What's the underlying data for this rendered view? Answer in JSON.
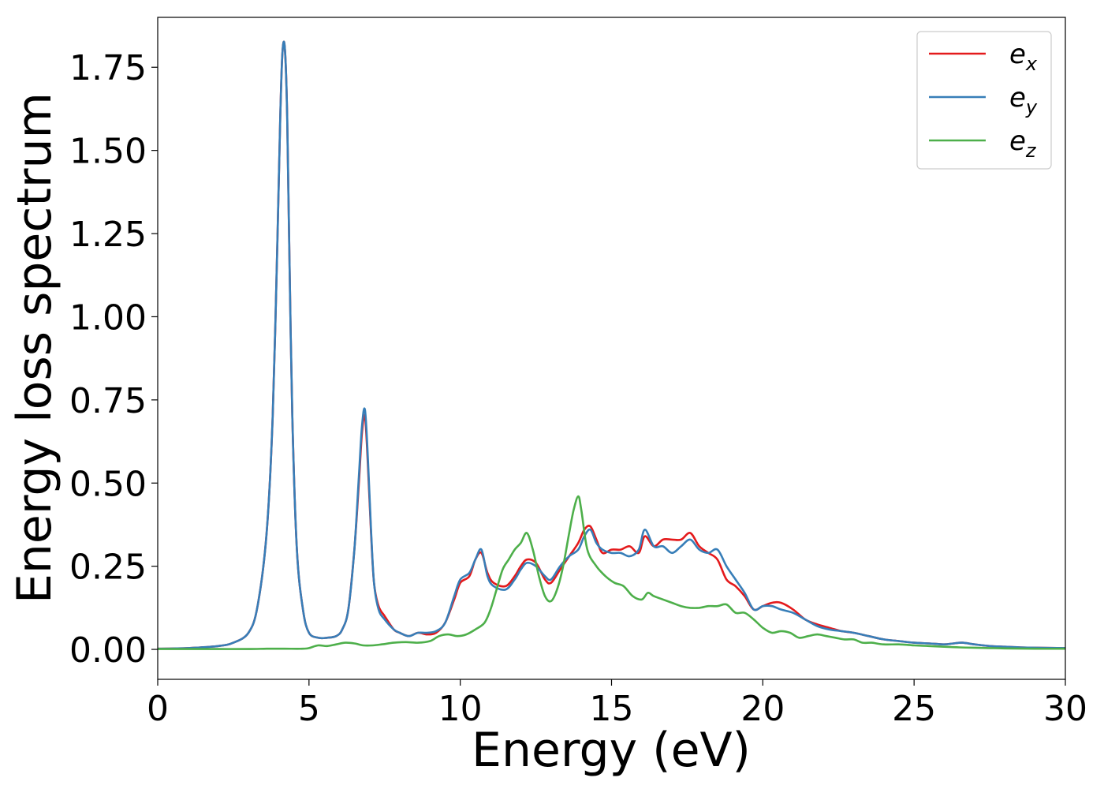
{
  "chart_data": {
    "type": "line",
    "title": "",
    "xlabel": "Energy (eV)",
    "ylabel": "Energy loss spectrum",
    "xlim": [
      0,
      30
    ],
    "ylim": [
      -0.09,
      1.9
    ],
    "xticks": [
      0,
      5,
      10,
      15,
      20,
      25,
      30
    ],
    "xtick_labels": [
      "0",
      "5",
      "10",
      "15",
      "20",
      "25",
      "30"
    ],
    "yticks": [
      0,
      0.25,
      0.5,
      0.75,
      1.0,
      1.25,
      1.5,
      1.75
    ],
    "ytick_labels": [
      "0.00",
      "0.25",
      "0.50",
      "0.75",
      "1.00",
      "1.25",
      "1.50",
      "1.75"
    ],
    "grid": false,
    "legend_position": "top-right",
    "series": [
      {
        "name": "e_x",
        "label_base": "e",
        "label_sub": "x",
        "color": "#e41a1c",
        "x": [
          0,
          1,
          2,
          2.5,
          3,
          3.3,
          3.6,
          3.8,
          3.95,
          4.05,
          4.12,
          4.2,
          4.28,
          4.35,
          4.45,
          4.6,
          4.8,
          5.0,
          5.3,
          5.6,
          5.9,
          6.1,
          6.3,
          6.5,
          6.65,
          6.75,
          6.85,
          6.95,
          7.05,
          7.15,
          7.3,
          7.5,
          7.8,
          8.0,
          8.3,
          8.6,
          8.9,
          9.2,
          9.5,
          9.8,
          10.0,
          10.3,
          10.5,
          10.7,
          10.9,
          11.1,
          11.5,
          11.8,
          12.0,
          12.2,
          12.5,
          12.8,
          13.0,
          13.3,
          13.6,
          13.9,
          14.1,
          14.3,
          14.5,
          14.7,
          15.0,
          15.3,
          15.6,
          15.9,
          16.1,
          16.4,
          16.7,
          17.0,
          17.3,
          17.6,
          17.9,
          18.2,
          18.5,
          18.8,
          19.1,
          19.4,
          19.7,
          20.0,
          20.3,
          20.6,
          21.0,
          21.4,
          21.8,
          22.2,
          22.6,
          23.0,
          23.5,
          24.0,
          24.5,
          25.0,
          25.5,
          26.0,
          26.3,
          26.6,
          27.0,
          27.5,
          28.0,
          28.5,
          29.0,
          30.0
        ],
        "y": [
          0.002,
          0.004,
          0.01,
          0.02,
          0.05,
          0.13,
          0.35,
          0.7,
          1.2,
          1.6,
          1.79,
          1.81,
          1.6,
          1.2,
          0.7,
          0.3,
          0.12,
          0.05,
          0.035,
          0.035,
          0.04,
          0.06,
          0.12,
          0.3,
          0.5,
          0.65,
          0.7,
          0.55,
          0.35,
          0.2,
          0.13,
          0.1,
          0.06,
          0.05,
          0.04,
          0.05,
          0.045,
          0.05,
          0.08,
          0.15,
          0.2,
          0.22,
          0.27,
          0.29,
          0.23,
          0.2,
          0.19,
          0.22,
          0.25,
          0.27,
          0.26,
          0.21,
          0.2,
          0.24,
          0.28,
          0.32,
          0.36,
          0.37,
          0.33,
          0.29,
          0.3,
          0.3,
          0.31,
          0.29,
          0.34,
          0.31,
          0.33,
          0.33,
          0.33,
          0.35,
          0.31,
          0.29,
          0.27,
          0.21,
          0.19,
          0.16,
          0.12,
          0.13,
          0.14,
          0.14,
          0.12,
          0.09,
          0.075,
          0.065,
          0.055,
          0.05,
          0.04,
          0.03,
          0.025,
          0.02,
          0.018,
          0.015,
          0.018,
          0.02,
          0.015,
          0.01,
          0.008,
          0.006,
          0.005,
          0.004
        ]
      },
      {
        "name": "e_y",
        "label_base": "e",
        "label_sub": "y",
        "color": "#377eb8",
        "x": [
          0,
          1,
          2,
          2.5,
          3,
          3.3,
          3.6,
          3.8,
          3.95,
          4.05,
          4.12,
          4.2,
          4.28,
          4.35,
          4.45,
          4.6,
          4.8,
          5.0,
          5.3,
          5.6,
          5.9,
          6.1,
          6.3,
          6.5,
          6.65,
          6.75,
          6.85,
          6.95,
          7.05,
          7.15,
          7.3,
          7.5,
          7.8,
          8.0,
          8.3,
          8.6,
          8.9,
          9.2,
          9.5,
          9.8,
          10.0,
          10.3,
          10.5,
          10.7,
          10.9,
          11.1,
          11.5,
          11.8,
          12.0,
          12.2,
          12.5,
          12.8,
          13.0,
          13.3,
          13.6,
          13.9,
          14.1,
          14.3,
          14.5,
          14.7,
          15.0,
          15.3,
          15.6,
          15.9,
          16.1,
          16.4,
          16.7,
          17.0,
          17.3,
          17.6,
          17.9,
          18.2,
          18.5,
          18.8,
          19.1,
          19.4,
          19.7,
          20.0,
          20.3,
          20.6,
          21.0,
          21.4,
          21.8,
          22.2,
          22.6,
          23.0,
          23.5,
          24.0,
          24.5,
          25.0,
          25.5,
          26.0,
          26.3,
          26.6,
          27.0,
          27.5,
          28.0,
          28.5,
          29.0,
          30.0
        ],
        "y": [
          0.002,
          0.004,
          0.01,
          0.02,
          0.05,
          0.13,
          0.35,
          0.7,
          1.2,
          1.6,
          1.79,
          1.81,
          1.6,
          1.2,
          0.7,
          0.3,
          0.12,
          0.05,
          0.035,
          0.035,
          0.04,
          0.06,
          0.12,
          0.3,
          0.52,
          0.67,
          0.72,
          0.57,
          0.36,
          0.2,
          0.12,
          0.09,
          0.06,
          0.05,
          0.04,
          0.05,
          0.05,
          0.055,
          0.08,
          0.16,
          0.21,
          0.23,
          0.27,
          0.3,
          0.22,
          0.19,
          0.18,
          0.21,
          0.24,
          0.26,
          0.25,
          0.22,
          0.21,
          0.25,
          0.28,
          0.3,
          0.34,
          0.36,
          0.32,
          0.3,
          0.29,
          0.29,
          0.28,
          0.3,
          0.36,
          0.31,
          0.31,
          0.29,
          0.31,
          0.33,
          0.3,
          0.29,
          0.3,
          0.25,
          0.21,
          0.17,
          0.12,
          0.13,
          0.13,
          0.12,
          0.11,
          0.09,
          0.07,
          0.06,
          0.055,
          0.05,
          0.04,
          0.03,
          0.025,
          0.02,
          0.018,
          0.015,
          0.018,
          0.02,
          0.015,
          0.01,
          0.008,
          0.006,
          0.005,
          0.004
        ]
      },
      {
        "name": "e_z",
        "label_base": "e",
        "label_sub": "z",
        "color": "#4daf4a",
        "x": [
          0,
          1,
          2,
          3,
          3.6,
          4.2,
          4.8,
          5.0,
          5.3,
          5.6,
          5.9,
          6.2,
          6.5,
          6.8,
          7.1,
          7.4,
          7.8,
          8.2,
          8.6,
          9.0,
          9.3,
          9.6,
          9.9,
          10.2,
          10.5,
          10.8,
          11.0,
          11.2,
          11.4,
          11.6,
          11.8,
          12.0,
          12.2,
          12.4,
          12.6,
          12.8,
          13.0,
          13.2,
          13.4,
          13.6,
          13.75,
          13.9,
          14.0,
          14.2,
          14.5,
          14.8,
          15.1,
          15.4,
          15.7,
          16.0,
          16.2,
          16.4,
          16.7,
          17.0,
          17.3,
          17.6,
          17.9,
          18.2,
          18.5,
          18.8,
          19.1,
          19.4,
          19.7,
          20.0,
          20.3,
          20.6,
          20.9,
          21.2,
          21.5,
          21.8,
          22.1,
          22.4,
          22.7,
          23.0,
          23.3,
          23.6,
          24.0,
          24.5,
          25.0,
          25.5,
          26.0,
          26.5,
          27.0,
          27.5,
          28.0,
          29.0,
          30.0
        ],
        "y": [
          0.001,
          0.001,
          0.001,
          0.001,
          0.002,
          0.002,
          0.002,
          0.004,
          0.012,
          0.01,
          0.015,
          0.02,
          0.018,
          0.012,
          0.012,
          0.015,
          0.02,
          0.022,
          0.02,
          0.025,
          0.04,
          0.045,
          0.04,
          0.045,
          0.06,
          0.08,
          0.12,
          0.18,
          0.24,
          0.27,
          0.3,
          0.32,
          0.35,
          0.3,
          0.22,
          0.16,
          0.145,
          0.18,
          0.25,
          0.35,
          0.42,
          0.46,
          0.42,
          0.3,
          0.25,
          0.22,
          0.2,
          0.19,
          0.16,
          0.15,
          0.17,
          0.16,
          0.15,
          0.14,
          0.13,
          0.125,
          0.125,
          0.13,
          0.13,
          0.135,
          0.11,
          0.11,
          0.09,
          0.065,
          0.05,
          0.055,
          0.05,
          0.035,
          0.04,
          0.045,
          0.04,
          0.035,
          0.03,
          0.03,
          0.02,
          0.02,
          0.015,
          0.015,
          0.012,
          0.01,
          0.008,
          0.006,
          0.005,
          0.004,
          0.003,
          0.002,
          0.002
        ]
      }
    ]
  }
}
